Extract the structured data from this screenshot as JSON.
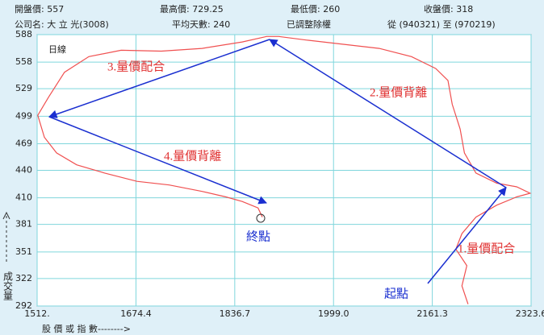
{
  "chart_data": {
    "type": "line",
    "info": [
      "開盤價: 557",
      "最高價: 729.25",
      "最低價: 260",
      "收盤價: 318",
      "公司名: 大 立 光(3008)",
      "平均天數: 240",
      "已調整除權",
      "從 (940321) 至 (970219)"
    ],
    "subtitle": "日線",
    "x_label": "股 價 或 指 數-------->",
    "y_label": "成交量",
    "annotations": [
      "1.量價配合",
      "2.量價背離",
      "3.量價配合",
      "4.量價背離",
      "起點",
      "終點"
    ],
    "color": "#f05050",
    "grid": true,
    "xlim": [
      1512,
      2323.6
    ],
    "ylim": [
      292,
      588
    ],
    "xticks": [
      {
        "value": 1512,
        "label": "1512."
      },
      1674.4,
      1836.7,
      {
        "value": 1999,
        "label": "1999.0"
      },
      2161.3,
      2323.6
    ],
    "yticks": [
      292,
      322,
      351,
      381,
      410,
      440,
      469,
      499,
      529,
      558,
      588
    ],
    "x": [
      2220,
      2210,
      2218,
      2200,
      2210,
      2233,
      2267,
      2300,
      2322,
      2300,
      2267,
      2233,
      2214,
      2207,
      2194,
      2187,
      2167,
      2127,
      2074,
      2008,
      1955,
      1909,
      1889,
      1849,
      1783,
      1716,
      1650,
      1597,
      1557,
      1531,
      1513,
      1524,
      1544,
      1577,
      1623,
      1676,
      1729,
      1783,
      1822,
      1849,
      1875,
      1882
    ],
    "values": [
      294,
      314,
      336,
      354,
      371,
      389,
      402,
      411,
      415,
      422,
      426,
      437,
      459,
      485,
      512,
      538,
      551,
      564,
      573,
      578,
      582,
      586,
      586,
      580,
      573,
      570,
      571,
      564,
      547,
      520,
      500,
      476,
      459,
      446,
      437,
      428,
      424,
      417,
      411,
      406,
      399,
      389
    ]
  }
}
